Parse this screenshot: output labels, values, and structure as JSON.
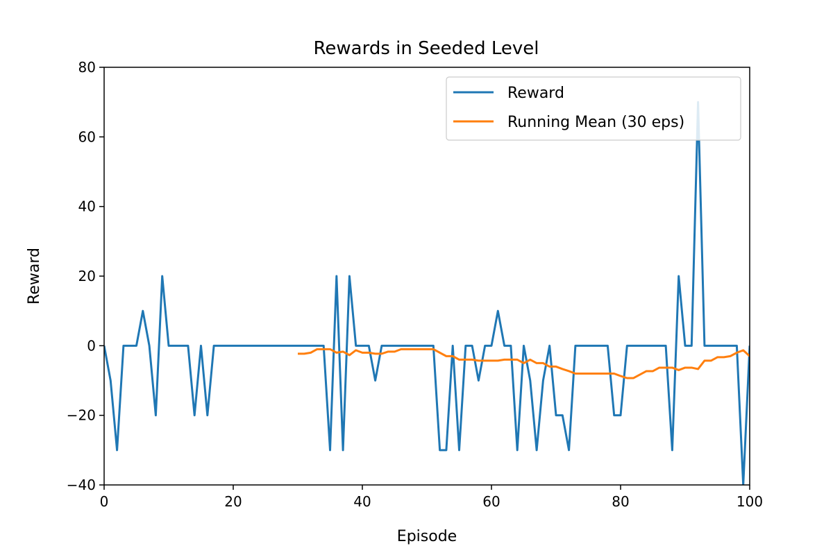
{
  "chart_data": {
    "type": "line",
    "title": "Rewards in Seeded Level",
    "xlabel": "Episode",
    "ylabel": "Reward",
    "xlim": [
      0,
      100
    ],
    "ylim": [
      -40,
      80
    ],
    "xticks": [
      0,
      20,
      40,
      60,
      80,
      100
    ],
    "yticks": [
      -40,
      -20,
      0,
      20,
      40,
      60,
      80
    ],
    "xtick_labels": [
      "0",
      "20",
      "40",
      "60",
      "80",
      "100"
    ],
    "ytick_labels": [
      "−40",
      "−20",
      "0",
      "20",
      "40",
      "60",
      "80"
    ],
    "grid": false,
    "legend_position": "top-right",
    "series": [
      {
        "name": "Reward",
        "color": "#1f77b4",
        "x": [
          0,
          1,
          2,
          3,
          4,
          5,
          6,
          7,
          8,
          9,
          10,
          11,
          12,
          13,
          14,
          15,
          16,
          17,
          18,
          19,
          20,
          21,
          22,
          23,
          24,
          25,
          26,
          27,
          28,
          29,
          30,
          31,
          32,
          33,
          34,
          35,
          36,
          37,
          38,
          39,
          40,
          41,
          42,
          43,
          44,
          45,
          46,
          47,
          48,
          49,
          50,
          51,
          52,
          53,
          54,
          55,
          56,
          57,
          58,
          59,
          60,
          61,
          62,
          63,
          64,
          65,
          66,
          67,
          68,
          69,
          70,
          71,
          72,
          73,
          74,
          75,
          76,
          77,
          78,
          79,
          80,
          81,
          82,
          83,
          84,
          85,
          86,
          87,
          88,
          89,
          90,
          91,
          92,
          93,
          94,
          95,
          96,
          97,
          98,
          99,
          100
        ],
        "y": [
          0,
          -10,
          -30,
          0,
          0,
          0,
          10,
          0,
          -20,
          20,
          0,
          0,
          0,
          0,
          -20,
          0,
          -20,
          0,
          0,
          0,
          0,
          0,
          0,
          0,
          0,
          0,
          0,
          0,
          0,
          0,
          0,
          0,
          0,
          0,
          0,
          -30,
          20,
          -30,
          20,
          0,
          0,
          0,
          -10,
          0,
          0,
          0,
          0,
          0,
          0,
          0,
          0,
          0,
          -30,
          -30,
          0,
          -30,
          0,
          0,
          -10,
          0,
          0,
          10,
          0,
          0,
          -30,
          0,
          -10,
          -30,
          -10,
          0,
          -20,
          -20,
          -30,
          0,
          0,
          0,
          0,
          0,
          0,
          -20,
          -20,
          0,
          0,
          0,
          0,
          0,
          0,
          0,
          -30,
          20,
          0,
          0,
          70,
          0,
          0,
          0,
          0,
          0,
          0,
          -40,
          0
        ]
      },
      {
        "name": "Running Mean (30 eps)",
        "color": "#ff7f0e",
        "x": [
          30,
          31,
          32,
          33,
          34,
          35,
          36,
          37,
          38,
          39,
          40,
          41,
          42,
          43,
          44,
          45,
          46,
          47,
          48,
          49,
          50,
          51,
          52,
          53,
          54,
          55,
          56,
          57,
          58,
          59,
          60,
          61,
          62,
          63,
          64,
          65,
          66,
          67,
          68,
          69,
          70,
          71,
          72,
          73,
          74,
          75,
          76,
          77,
          78,
          79,
          80,
          81,
          82,
          83,
          84,
          85,
          86,
          87,
          88,
          89,
          90,
          91,
          92,
          93,
          94,
          95,
          96,
          97,
          98,
          99,
          100
        ],
        "y": [
          -2.3,
          -2.3,
          -2.0,
          -1.0,
          -1.0,
          -1.0,
          -2.0,
          -1.7,
          -2.7,
          -1.3,
          -2.0,
          -2.0,
          -2.3,
          -2.3,
          -1.7,
          -1.7,
          -1.0,
          -1.0,
          -1.0,
          -1.0,
          -1.0,
          -1.0,
          -2.0,
          -3.0,
          -3.0,
          -4.0,
          -4.0,
          -4.0,
          -4.3,
          -4.3,
          -4.3,
          -4.3,
          -4.0,
          -4.0,
          -4.0,
          -5.0,
          -4.0,
          -5.0,
          -5.0,
          -6.0,
          -6.0,
          -6.7,
          -7.3,
          -8.0,
          -8.0,
          -8.0,
          -8.0,
          -8.0,
          -8.0,
          -8.0,
          -8.7,
          -9.3,
          -9.3,
          -8.3,
          -7.3,
          -7.3,
          -6.3,
          -6.3,
          -6.3,
          -7.0,
          -6.3,
          -6.3,
          -6.7,
          -4.3,
          -4.3,
          -3.3,
          -3.3,
          -3.0,
          -2.0,
          -1.3,
          -3.0
        ]
      }
    ]
  }
}
